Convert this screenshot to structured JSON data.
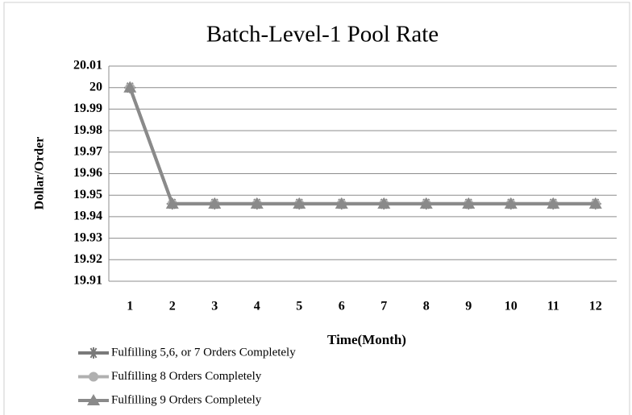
{
  "chart_data": {
    "type": "line",
    "title": "Batch-Level-1 Pool Rate",
    "x_label": "Time(Month)",
    "y_label": "Dollar/Order",
    "categories": [
      "1",
      "2",
      "3",
      "4",
      "5",
      "6",
      "7",
      "8",
      "9",
      "10",
      "11",
      "12"
    ],
    "series": [
      {
        "name": "Fulfilling 5,6, or 7 Orders Completely",
        "color": "#7a7a7a",
        "marker": "star",
        "values": [
          20,
          19.946,
          19.946,
          19.946,
          19.946,
          19.946,
          19.946,
          19.946,
          19.946,
          19.946,
          19.946,
          19.946
        ]
      },
      {
        "name": "Fulfilling 8 Orders Completely",
        "color": "#b0b0b0",
        "marker": "circle",
        "values": [
          20,
          19.946,
          19.946,
          19.946,
          19.946,
          19.946,
          19.946,
          19.946,
          19.946,
          19.946,
          19.946,
          19.946
        ]
      },
      {
        "name": "Fulfilling 9 Orders Completely",
        "color": "#8a8a8a",
        "marker": "triangle",
        "values": [
          20,
          19.946,
          19.946,
          19.946,
          19.946,
          19.946,
          19.946,
          19.946,
          19.946,
          19.946,
          19.946,
          19.946
        ]
      }
    ],
    "ylim": [
      19.91,
      20.01
    ],
    "yticks": [
      19.91,
      19.92,
      19.93,
      19.94,
      19.95,
      19.96,
      19.97,
      19.98,
      19.99,
      20,
      20.01
    ],
    "grid": true,
    "legend": "bottom"
  }
}
